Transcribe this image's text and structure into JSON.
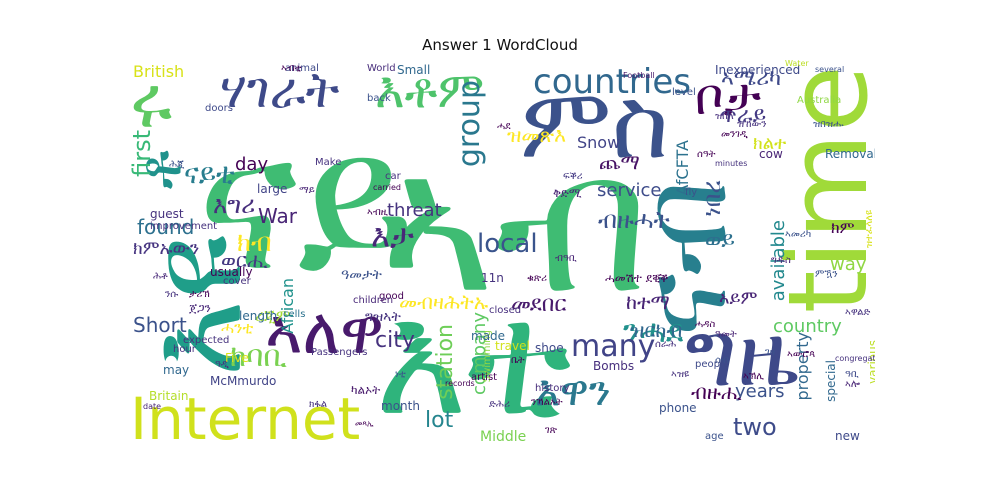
{
  "title": "Answer 1 WordCloud",
  "words": [
    {
      "text": "ናይ",
      "color": "#3fbc73"
    },
    {
      "text": "ኣብ",
      "color": "#3fbc73"
    },
    {
      "text": "እቲ",
      "color": "#2fb47c"
    },
    {
      "text": "ምስ",
      "color": "#3b528b"
    },
    {
      "text": "እዩ",
      "color": "#1f9e89"
    },
    {
      "text": "time",
      "color": "#a0da39"
    },
    {
      "text": "Internet",
      "color": "#d0e11c"
    },
    {
      "text": "ግዜ",
      "color": "#3e4989"
    },
    {
      "text": "ናብ",
      "color": "#277f8e"
    },
    {
      "text": "ኣለዋ",
      "color": "#481a6c"
    },
    {
      "text": "ሃገራት",
      "color": "#3e4a89"
    },
    {
      "text": "እቶም",
      "color": "#4ec36b"
    },
    {
      "text": "ቦታ",
      "color": "#440154"
    },
    {
      "text": "countries",
      "color": "#31688e"
    },
    {
      "text": "ሩ",
      "color": "#5ec962"
    },
    {
      "text": "ቶ",
      "color": "#20928c"
    },
    {
      "text": "ኣሜሪካ",
      "color": "#3e4989"
    },
    {
      "text": "ጥራይ",
      "color": "#443a83"
    },
    {
      "text": "ክልተ",
      "color": "#d2e21b"
    },
    {
      "text": "first",
      "color": "#38b977"
    },
    {
      "text": "group",
      "color": "#2a788e"
    },
    {
      "text": "ዝመጽእ",
      "color": "#fde725"
    },
    {
      "text": "ጨማ",
      "color": "#471365"
    },
    {
      "text": "Snow",
      "color": "#414487"
    },
    {
      "text": "AfCFTA",
      "color": "#2c728e"
    },
    {
      "text": "ናይቲ",
      "color": "#287d8e"
    },
    {
      "text": "እግሪ",
      "color": "#472f7d"
    },
    {
      "text": "found",
      "color": "#2d708e"
    },
    {
      "text": "War",
      "color": "#482475"
    },
    {
      "text": "service",
      "color": "#3e4c8a"
    },
    {
      "text": "ክብ",
      "color": "#fde725"
    },
    {
      "text": "እታ",
      "color": "#482878"
    },
    {
      "text": "ብዙሓት",
      "color": "#3b528b"
    },
    {
      "text": "ነበረ",
      "color": "#3b528b"
    },
    {
      "text": "ወይ",
      "color": "#2d708e"
    },
    {
      "text": "ክም",
      "color": "#440154"
    },
    {
      "text": "way",
      "color": "#90d743"
    },
    {
      "text": "threat",
      "color": "#46337e"
    },
    {
      "text": "local",
      "color": "#3a548c"
    },
    {
      "text": "ክምኡውን",
      "color": "#463480"
    },
    {
      "text": "ወርሒ",
      "color": "#453882"
    },
    {
      "text": "Short",
      "color": "#3b528b"
    },
    {
      "text": "ሓንቲ",
      "color": "#fde725"
    },
    {
      "text": "available",
      "color": "#23898e"
    },
    {
      "text": "ንሓደ",
      "color": "#21918c"
    },
    {
      "text": "country",
      "color": "#5ec962"
    },
    {
      "text": "many",
      "color": "#414487"
    },
    {
      "text": "ክባቢ",
      "color": "#7ad151"
    },
    {
      "text": "city",
      "color": "#46327e"
    },
    {
      "text": "መብዛሕትኡ",
      "color": "#fde725"
    },
    {
      "text": "መደበር",
      "color": "#481a6c"
    },
    {
      "text": "ከተማ",
      "color": "#482475"
    },
    {
      "text": "ዝርከብ",
      "color": "#31688e"
    },
    {
      "text": "እዋን",
      "color": "#2a788e"
    },
    {
      "text": "two",
      "color": "#3e4c8a"
    },
    {
      "text": "property",
      "color": "#31688e"
    },
    {
      "text": "years",
      "color": "#3b528b"
    },
    {
      "text": "lot",
      "color": "#25858e"
    },
    {
      "text": "station",
      "color": "#6ece58"
    },
    {
      "text": "company",
      "color": "#5ec962"
    },
    {
      "text": "British",
      "color": "#d8e219"
    },
    {
      "text": "day",
      "color": "#440154"
    },
    {
      "text": "African",
      "color": "#20928c"
    },
    {
      "text": "ብዙሒ",
      "color": "#440154"
    },
    {
      "text": "Middle",
      "color": "#7ad151"
    },
    {
      "text": "ዓመታት",
      "color": "#3b528b"
    },
    {
      "text": "ግዝኣት",
      "color": "#46337e"
    },
    {
      "text": "ረጂም",
      "color": "#a5db36"
    },
    {
      "text": "ኣይም",
      "color": "#482475"
    },
    {
      "text": "ሓመሽተ ደቒቕ",
      "color": "#440154"
    },
    {
      "text": "Inexperienced",
      "color": "#3e4989"
    },
    {
      "text": "Small",
      "color": "#31688e"
    },
    {
      "text": "Passengers",
      "color": "#46327e"
    },
    {
      "text": "Removal",
      "color": "#31688e"
    },
    {
      "text": "Australia",
      "color": "#8fd744"
    },
    {
      "text": "cells",
      "color": "#2c728e"
    },
    {
      "text": "length",
      "color": "#31688e"
    },
    {
      "text": "Five",
      "color": "#dde318"
    },
    {
      "text": "Bombs",
      "color": "#472f7d"
    },
    {
      "text": "phone",
      "color": "#3b528b"
    },
    {
      "text": "month",
      "color": "#3b528b"
    },
    {
      "text": "McMmurdo",
      "color": "#414487"
    },
    {
      "text": "Britain",
      "color": "#b5de2b"
    },
    {
      "text": "history",
      "color": "#472d7b"
    },
    {
      "text": "people",
      "color": "#3e4989"
    },
    {
      "text": "special",
      "color": "#31688e"
    },
    {
      "text": "various",
      "color": "#bddf26"
    },
    {
      "text": "new",
      "color": "#3e4989"
    },
    {
      "text": "age",
      "color": "#3b528b"
    },
    {
      "text": "Swimming",
      "color": "#90d743"
    },
    {
      "text": "made",
      "color": "#31688e"
    },
    {
      "text": "travel",
      "color": "#d2e21b"
    },
    {
      "text": "shoe",
      "color": "#3e4989"
    },
    {
      "text": "records",
      "color": "#440154"
    },
    {
      "text": "artist",
      "color": "#440154"
    },
    {
      "text": "usually",
      "color": "#440154"
    },
    {
      "text": "guest",
      "color": "#46327e"
    },
    {
      "text": "improvement",
      "color": "#46327e"
    },
    {
      "text": "cover",
      "color": "#46327e"
    },
    {
      "text": "large",
      "color": "#414487"
    },
    {
      "text": "Make",
      "color": "#46327e"
    },
    {
      "text": "car",
      "color": "#46327e"
    },
    {
      "text": "carried",
      "color": "#440154"
    },
    {
      "text": "closed",
      "color": "#472f7d"
    },
    {
      "text": "good",
      "color": "#440154"
    },
    {
      "text": "11n",
      "color": "#46337e"
    },
    {
      "text": "animal",
      "color": "#3e4989"
    },
    {
      "text": "World",
      "color": "#472d7b"
    },
    {
      "text": "back",
      "color": "#3b528b"
    },
    {
      "text": "doors",
      "color": "#3e4989"
    },
    {
      "text": "Football",
      "color": "#481a6c"
    },
    {
      "text": "level",
      "color": "#3b528b"
    },
    {
      "text": "cow",
      "color": "#482475"
    },
    {
      "text": "minutes",
      "color": "#46337e"
    },
    {
      "text": "fly",
      "color": "#3b528b"
    },
    {
      "text": "hour",
      "color": "#46327e"
    },
    {
      "text": "children",
      "color": "#482878"
    },
    {
      "text": "expected",
      "color": "#46337e"
    },
    {
      "text": "may",
      "color": "#31688e"
    },
    {
      "text": "date",
      "color": "#482475"
    },
    {
      "text": "congregation",
      "color": "#46327e"
    },
    {
      "text": "advocate",
      "color": "#440154"
    },
    {
      "text": "several",
      "color": "#3b528b"
    },
    {
      "text": "Water",
      "color": "#bddf26"
    },
    {
      "text": "ታሪኽ",
      "color": "#440154"
    },
    {
      "text": "ጀጋን",
      "color": "#482878"
    },
    {
      "text": "ቅድሚ",
      "color": "#482575"
    },
    {
      "text": "ፍቕሪ",
      "color": "#443983"
    },
    {
      "text": "ዝበለ",
      "color": "#472f7d"
    },
    {
      "text": "ሰዓት",
      "color": "#440154"
    },
    {
      "text": "ኣመሪካ",
      "color": "#3b528b"
    },
    {
      "text": "ካልኦት",
      "color": "#481a6c"
    },
    {
      "text": "ሰራሕ",
      "color": "#46327e"
    },
    {
      "text": "ዓመት",
      "color": "#482475"
    },
    {
      "text": "ሕጂ",
      "color": "#3b528b"
    },
    {
      "text": "ቤት",
      "color": "#440154"
    },
    {
      "text": "ሓዳስ",
      "color": "#440154"
    },
    {
      "text": "መንገዲ",
      "color": "#440154"
    },
    {
      "text": "ገዛ",
      "color": "#3b528b"
    },
    {
      "text": "ምዃን",
      "color": "#3b528b"
    },
    {
      "text": "ዝኸውን",
      "color": "#46327e"
    },
    {
      "text": "ንሱ",
      "color": "#46327e"
    },
    {
      "text": "ኣብዚ",
      "color": "#440154"
    },
    {
      "text": "ዓዲ",
      "color": "#472f7d"
    },
    {
      "text": "ክፋል",
      "color": "#46327e"
    },
    {
      "text": "ሰብ",
      "color": "#3b528b"
    },
    {
      "text": "ማይ",
      "color": "#482475"
    },
    {
      "text": "ሓደ",
      "color": "#440154"
    },
    {
      "text": "ኣውሮጳ",
      "color": "#440154"
    },
    {
      "text": "ግዱስ",
      "color": "#482475"
    },
    {
      "text": "ዝተፈላለዩ",
      "color": "#d8e219"
    },
    {
      "text": "ዓቢ",
      "color": "#3e4989"
    },
    {
      "text": "ኣዝዩ",
      "color": "#46327e"
    },
    {
      "text": "ቁጽሪ",
      "color": "#440154"
    },
    {
      "text": "መጻኢ",
      "color": "#440154"
    },
    {
      "text": "ነቲ",
      "color": "#3b528b"
    },
    {
      "text": "ብዓቢ",
      "color": "#482475"
    },
    {
      "text": "ኣብቲ",
      "color": "#440154"
    },
    {
      "text": "ንኻልኦት",
      "color": "#440154"
    },
    {
      "text": "ገጽ",
      "color": "#440154"
    },
    {
      "text": "ሕቶ",
      "color": "#482878"
    },
    {
      "text": "ድሕሪ",
      "color": "#46327e"
    },
    {
      "text": "ዝበዝሑ",
      "color": "#3b528b"
    },
    {
      "text": "ኣኽሊ",
      "color": "#440154"
    },
    {
      "text": "ኣሎ",
      "color": "#482475"
    },
    {
      "text": "ኣዋልድ",
      "color": "#46327e"
    }
  ]
}
